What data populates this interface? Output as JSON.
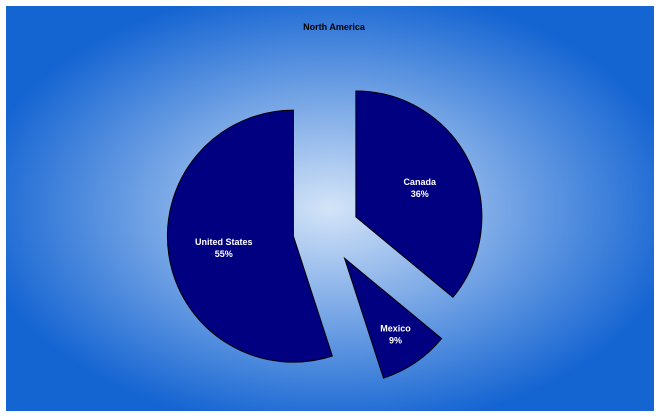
{
  "chart_data": {
    "type": "pie",
    "title": "North America",
    "exploded": true,
    "slices": [
      {
        "label": "Canada",
        "value": 36,
        "value_label": "36%"
      },
      {
        "label": "Mexico",
        "value": 9,
        "value_label": "9%"
      },
      {
        "label": "United States",
        "value": 55,
        "value_label": "55%"
      }
    ],
    "colors": {
      "slice_fill": "#000080",
      "slice_stroke": "#000000",
      "background_center": "#d4e4f8",
      "background_edge": "#1464d2",
      "label_text": "#ffffff",
      "title_text": "#000000"
    }
  }
}
